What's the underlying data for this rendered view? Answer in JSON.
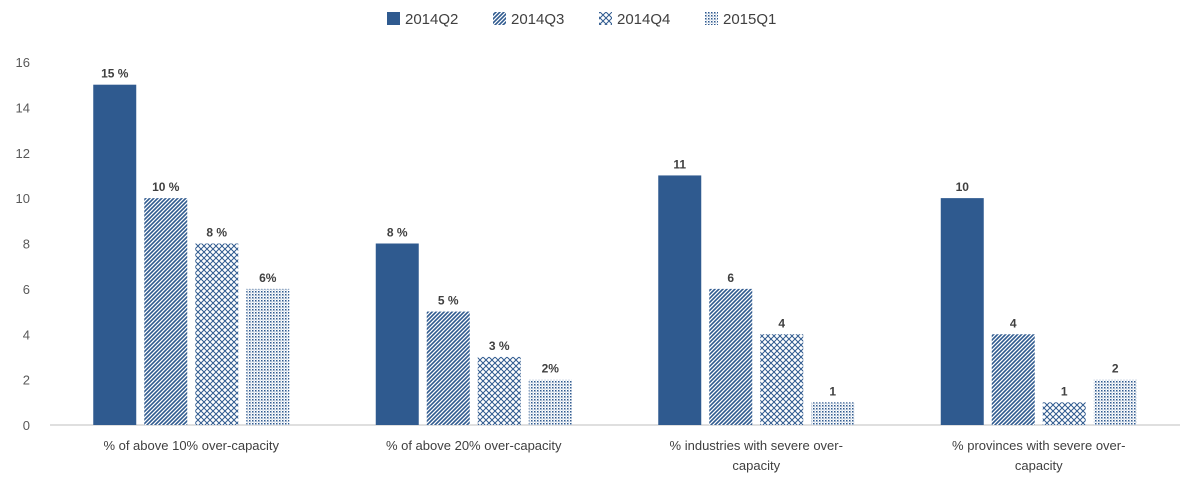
{
  "chart_data": {
    "type": "bar",
    "categories": [
      [
        "% of above 10% over-capacity"
      ],
      [
        "% of above 20% over-capacity"
      ],
      [
        "% industries with severe over-",
        "capacity"
      ],
      [
        "% provinces with severe over-",
        "capacity"
      ]
    ],
    "series": [
      {
        "name": "2014Q2",
        "values": [
          15,
          8,
          11,
          10
        ],
        "labels": [
          "15 %",
          "8 %",
          "11",
          "10"
        ],
        "pattern": "solid"
      },
      {
        "name": "2014Q3",
        "values": [
          10,
          5,
          6,
          4
        ],
        "labels": [
          "10 %",
          "5 %",
          "6",
          "4"
        ],
        "pattern": "diagonal"
      },
      {
        "name": "2014Q4",
        "values": [
          8,
          3,
          4,
          1
        ],
        "labels": [
          "8 %",
          "3 %",
          "4",
          "1"
        ],
        "pattern": "crosshatch"
      },
      {
        "name": "2015Q1",
        "values": [
          6,
          2,
          1,
          2
        ],
        "labels": [
          "6%",
          "2%",
          "1",
          "2"
        ],
        "pattern": "dots"
      }
    ],
    "yticks": [
      0,
      2,
      4,
      6,
      8,
      10,
      12,
      14,
      16
    ],
    "ylim": [
      0,
      16
    ],
    "grid": false,
    "legend_position": "top-center",
    "colors": {
      "bar": "#2f5a8f",
      "axis": "#bfbfbf"
    }
  }
}
